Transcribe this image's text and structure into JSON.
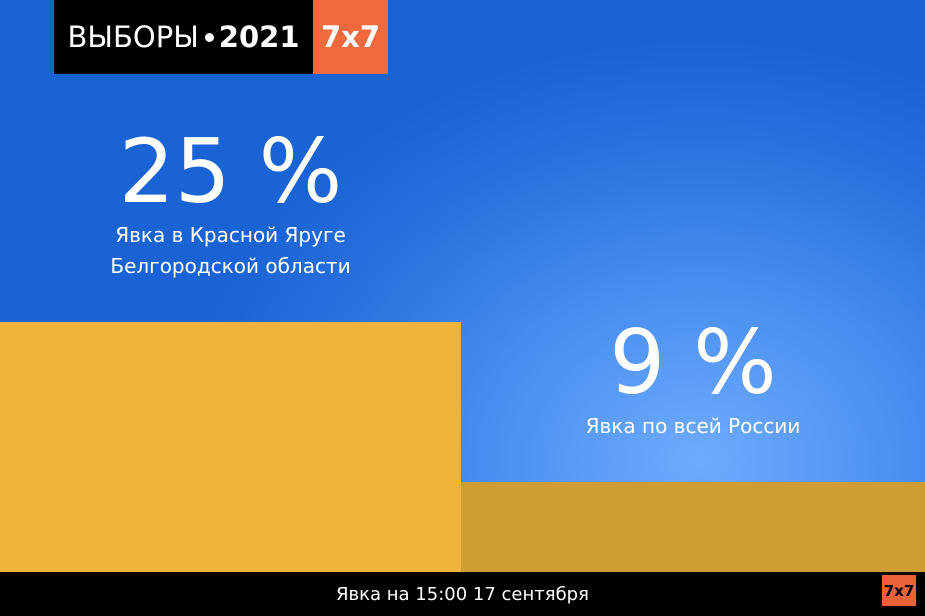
{
  "header": {
    "title": "ВЫБОРЫ",
    "year": "2021"
  },
  "logo": "7x7",
  "chart_data": {
    "type": "bar",
    "categories": [
      "Явка в Красной Яруге Белгородской области",
      "Явка по всей России"
    ],
    "values": [
      25,
      9
    ],
    "value_labels": [
      "25 %",
      "9 %"
    ],
    "colors": [
      "#f0b43c",
      "#d09c34"
    ]
  },
  "footer": "Явка на 15:00 17 сентября"
}
